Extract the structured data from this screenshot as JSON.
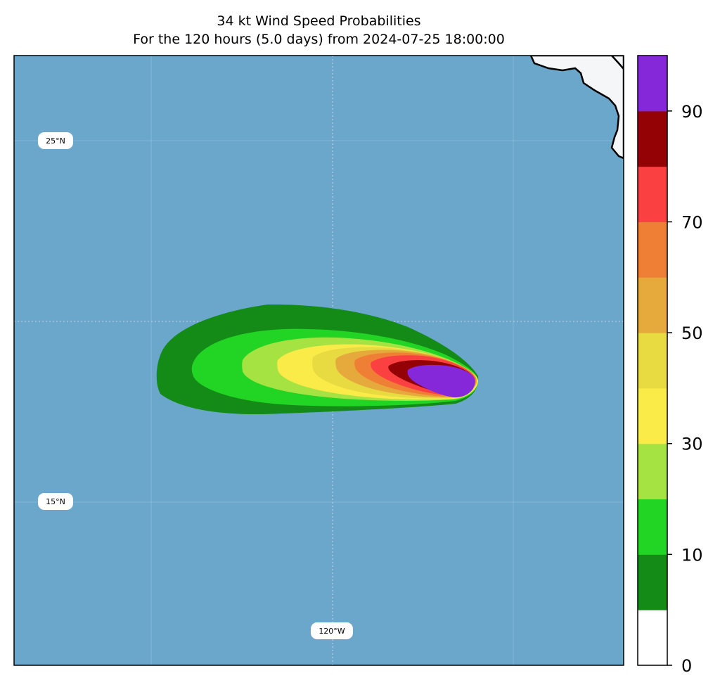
{
  "title": {
    "line1": "34 kt Wind Speed Probabilities",
    "line2": "For the 120 hours (5.0 days) from 2024-07-25 18:00:00"
  },
  "map": {
    "ocean_color": "#6ba6cb",
    "land_color": "#f4f6f8",
    "grid_labels": {
      "lat_upper": "25°N",
      "lat_lower": "15°N",
      "lon": "120°W"
    }
  },
  "colorbar": {
    "bins": [
      {
        "min": 0,
        "max": 5,
        "color": "#ffffff"
      },
      {
        "min": 5,
        "max": 10,
        "color": "#148a17"
      },
      {
        "min": 10,
        "max": 20,
        "color": "#22d424"
      },
      {
        "min": 20,
        "max": 30,
        "color": "#a4e342"
      },
      {
        "min": 30,
        "max": 40,
        "color": "#faeb48"
      },
      {
        "min": 40,
        "max": 50,
        "color": "#e8db42"
      },
      {
        "min": 50,
        "max": 60,
        "color": "#e5aa3b"
      },
      {
        "min": 60,
        "max": 70,
        "color": "#ef7f34"
      },
      {
        "min": 70,
        "max": 80,
        "color": "#fb4042"
      },
      {
        "min": 80,
        "max": 90,
        "color": "#950206"
      },
      {
        "min": 90,
        "max": 100,
        "color": "#8428d9"
      }
    ],
    "tick_labels": [
      "0",
      "10",
      "30",
      "50",
      "70",
      "90"
    ]
  }
}
